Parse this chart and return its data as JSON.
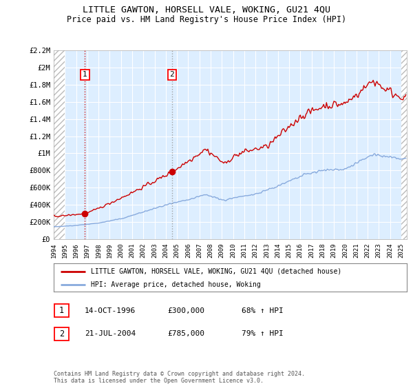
{
  "title": "LITTLE GAWTON, HORSELL VALE, WOKING, GU21 4QU",
  "subtitle": "Price paid vs. HM Land Registry's House Price Index (HPI)",
  "legend_line1": "LITTLE GAWTON, HORSELL VALE, WOKING, GU21 4QU (detached house)",
  "legend_line2": "HPI: Average price, detached house, Woking",
  "footnote": "Contains HM Land Registry data © Crown copyright and database right 2024.\nThis data is licensed under the Open Government Licence v3.0.",
  "sale1_label": "1",
  "sale1_date": "14-OCT-1996",
  "sale1_price": "£300,000",
  "sale1_hpi": "68% ↑ HPI",
  "sale2_label": "2",
  "sale2_date": "21-JUL-2004",
  "sale2_price": "£785,000",
  "sale2_hpi": "79% ↑ HPI",
  "xmin": 1994.0,
  "xmax": 2025.5,
  "ymin": 0,
  "ymax": 2200000,
  "plot_bg_color": "#ddeeff",
  "grid_color": "#ffffff",
  "red_line_color": "#cc0000",
  "blue_line_color": "#88aadd",
  "sale1_x": 1996.79,
  "sale1_y": 300000,
  "sale2_x": 2004.55,
  "sale2_y": 785000,
  "yticks": [
    0,
    200000,
    400000,
    600000,
    800000,
    1000000,
    1200000,
    1400000,
    1600000,
    1800000,
    2000000,
    2200000
  ],
  "ytick_labels": [
    "£0",
    "£200K",
    "£400K",
    "£600K",
    "£800K",
    "£1M",
    "£1.2M",
    "£1.4M",
    "£1.6M",
    "£1.8M",
    "£2M",
    "£2.2M"
  ]
}
